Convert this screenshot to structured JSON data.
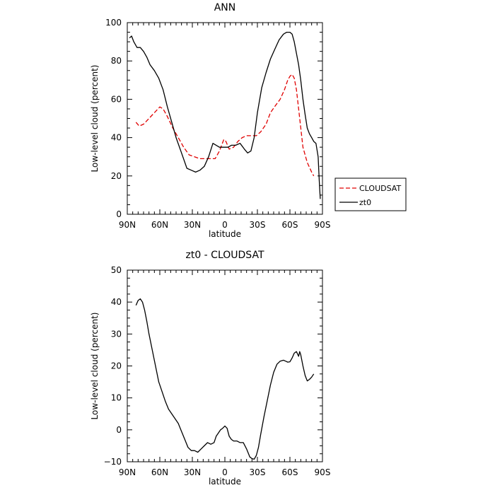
{
  "chart_data": [
    {
      "type": "line",
      "title": "ANN",
      "xlabel": "latitude",
      "ylabel": "Low-level cloud (percent)",
      "xlim": [
        90,
        -90
      ],
      "ylim": [
        0,
        100
      ],
      "xticks": [
        90,
        60,
        30,
        0,
        -30,
        -60,
        -90
      ],
      "xtick_labels": [
        "90N",
        "60N",
        "30N",
        "0",
        "30S",
        "60S",
        "90S"
      ],
      "yticks": [
        0,
        20,
        40,
        60,
        80,
        100
      ],
      "ytick_labels": [
        "0",
        "20",
        "40",
        "60",
        "80",
        "100"
      ],
      "legend": {
        "position": "right",
        "entries": [
          "CLOUDSAT",
          "zt0"
        ]
      },
      "series": [
        {
          "name": "CLOUDSAT",
          "color": "#e00000",
          "dash": "dashed",
          "x": [
            82,
            79,
            75,
            70,
            65,
            60,
            57,
            53,
            48,
            43,
            38,
            33,
            28,
            23,
            18,
            13,
            9,
            5,
            1,
            -1,
            -4,
            -8,
            -12,
            -16,
            -20,
            -25,
            -29,
            -33,
            -38,
            -42,
            -47,
            -51,
            -55,
            -58,
            -60,
            -62,
            -64,
            -66,
            -68,
            -72,
            -76,
            -80,
            -82
          ],
          "y": [
            48,
            46,
            47,
            50,
            53,
            56,
            55,
            51,
            45,
            40,
            35,
            31,
            30,
            29,
            29,
            29,
            29,
            33,
            39,
            38,
            34,
            35,
            38,
            40,
            41,
            41,
            41,
            43,
            47,
            53,
            57,
            60,
            65,
            70,
            72,
            73,
            71,
            65,
            55,
            35,
            27,
            22,
            20
          ]
        },
        {
          "name": "zt0",
          "color": "#000000",
          "dash": "solid",
          "x": [
            88,
            86,
            84,
            81,
            78,
            75,
            72,
            69,
            65,
            61,
            57,
            53,
            49,
            45,
            40,
            35,
            31,
            27,
            23,
            19,
            15,
            11,
            8,
            5,
            2,
            0,
            -3,
            -6,
            -10,
            -14,
            -18,
            -21,
            -24,
            -27,
            -30,
            -34,
            -38,
            -42,
            -46,
            -50,
            -54,
            -57,
            -60,
            -62,
            -64,
            -66,
            -68,
            -70,
            -72,
            -74,
            -76,
            -78,
            -80,
            -82,
            -84,
            -86,
            -87,
            -88
          ],
          "y": [
            92,
            93,
            90,
            87,
            87,
            85,
            82,
            78,
            75,
            71,
            65,
            56,
            48,
            40,
            32,
            24,
            23,
            22,
            23,
            25,
            30,
            37,
            36,
            35,
            35,
            35,
            35,
            36,
            36,
            37,
            34,
            32,
            33,
            40,
            53,
            66,
            74,
            81,
            86,
            91,
            94,
            95,
            95,
            94,
            90,
            84,
            78,
            70,
            60,
            52,
            45,
            42,
            40,
            38,
            37,
            30,
            18,
            8
          ]
        }
      ]
    },
    {
      "type": "line",
      "title": "zt0 - CLOUDSAT",
      "xlabel": "latitude",
      "ylabel": "Low-level cloud (percent)",
      "xlim": [
        90,
        -90
      ],
      "ylim": [
        -10,
        50
      ],
      "xticks": [
        90,
        60,
        30,
        0,
        -30,
        -60,
        -90
      ],
      "xtick_labels": [
        "90N",
        "60N",
        "30N",
        "0",
        "30S",
        "60S",
        "90S"
      ],
      "yticks": [
        -10,
        0,
        10,
        20,
        30,
        40,
        50
      ],
      "ytick_labels": [
        "−10",
        "0",
        "10",
        "20",
        "30",
        "40",
        "50"
      ],
      "series": [
        {
          "color": "#000000",
          "dash": "solid",
          "x": [
            82,
            80,
            78,
            76,
            74,
            72,
            70,
            67,
            64,
            61,
            58,
            55,
            52,
            49,
            46,
            43,
            40,
            37,
            34,
            31,
            28,
            25,
            22,
            19,
            16,
            13,
            10,
            8,
            6,
            4,
            2,
            0,
            -2,
            -4,
            -6,
            -8,
            -11,
            -14,
            -17,
            -20,
            -23,
            -25,
            -27,
            -29,
            -31,
            -33,
            -36,
            -39,
            -42,
            -45,
            -48,
            -51,
            -54,
            -56,
            -58,
            -60,
            -62,
            -64,
            -66,
            -68,
            -69,
            -70,
            -72,
            -74,
            -76,
            -78,
            -80,
            -82
          ],
          "y": [
            39,
            40.5,
            41,
            40,
            37.5,
            34,
            30,
            25,
            20,
            15,
            12,
            9,
            6.5,
            5,
            3.5,
            2,
            -0.5,
            -3,
            -5.5,
            -6.5,
            -6.5,
            -7,
            -6,
            -5,
            -4,
            -4.5,
            -4,
            -2,
            -1,
            0,
            0.5,
            1.2,
            0.5,
            -2,
            -3,
            -3.5,
            -3.5,
            -4,
            -4,
            -6,
            -8.5,
            -9,
            -9.2,
            -8,
            -5.5,
            -1.5,
            4,
            9,
            14,
            18,
            20.5,
            21.5,
            21.8,
            21.5,
            21.2,
            21.3,
            22.5,
            24,
            24.5,
            23,
            24.5,
            23.5,
            20,
            17,
            15.3,
            15.8,
            16.5,
            17.5
          ]
        }
      ]
    }
  ]
}
